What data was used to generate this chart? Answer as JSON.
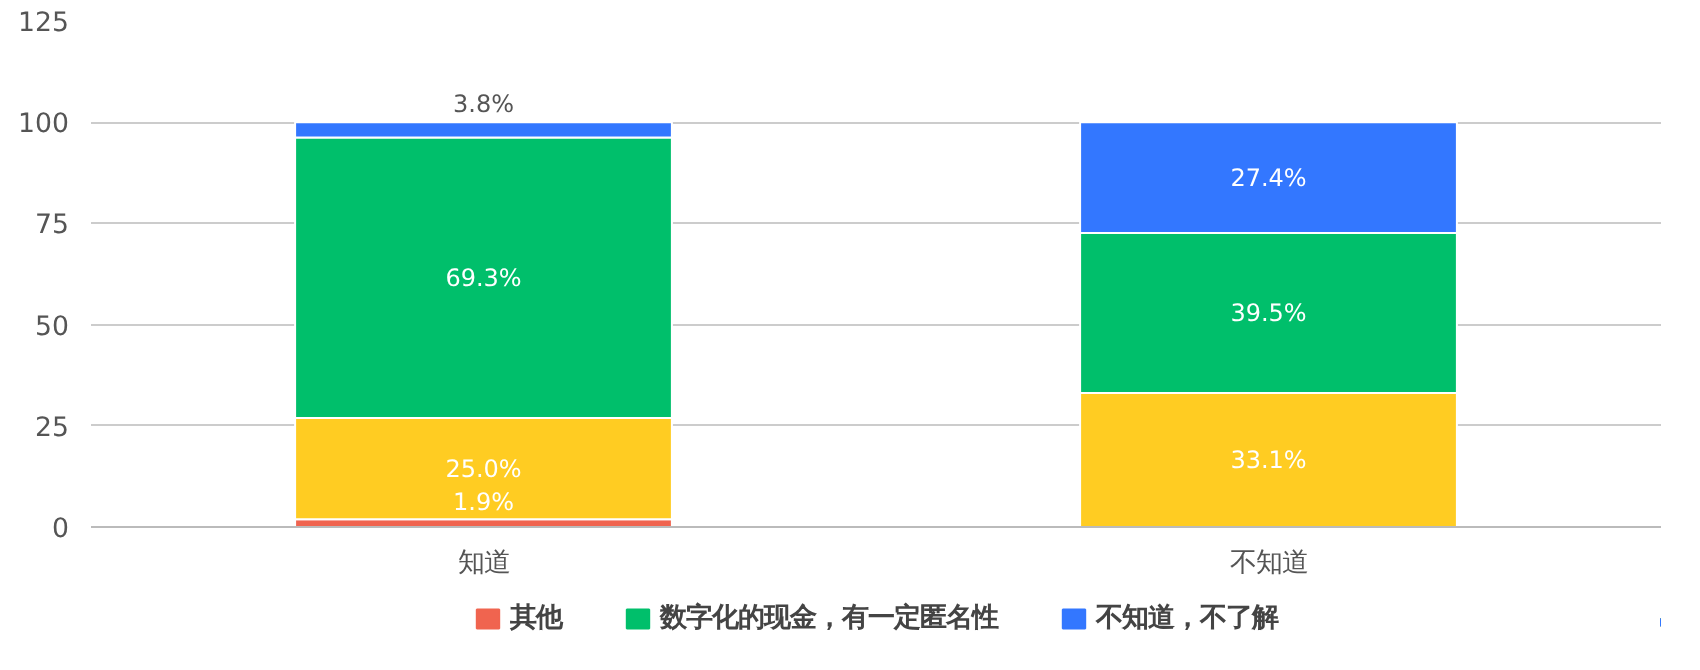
{
  "chart_data": {
    "type": "bar",
    "stacked": true,
    "categories": [
      "知道",
      "不知道"
    ],
    "series": [
      {
        "name": "其他",
        "color": "#f0644f",
        "values": [
          1.9,
          0
        ],
        "value_labels": [
          "1.9%",
          null
        ]
      },
      {
        "color": "#ffcc22",
        "values": [
          25.0,
          33.1
        ],
        "value_labels": [
          "25.0%",
          "33.1%"
        ]
      },
      {
        "name": "数字化的现金，有一定匿名性",
        "color": "#00bf6b",
        "values": [
          69.3,
          39.5
        ],
        "value_labels": [
          "69.3%",
          "39.5%"
        ]
      },
      {
        "name": "不知道，不了解",
        "color": "#3377ff",
        "values": [
          3.8,
          27.4
        ],
        "value_labels": [
          "3.8%",
          "27.4%"
        ]
      }
    ],
    "ylim": [
      0,
      125
    ],
    "yticks": [
      0,
      25,
      50,
      75,
      100,
      125
    ],
    "grid": "y",
    "legend": "bottom"
  }
}
